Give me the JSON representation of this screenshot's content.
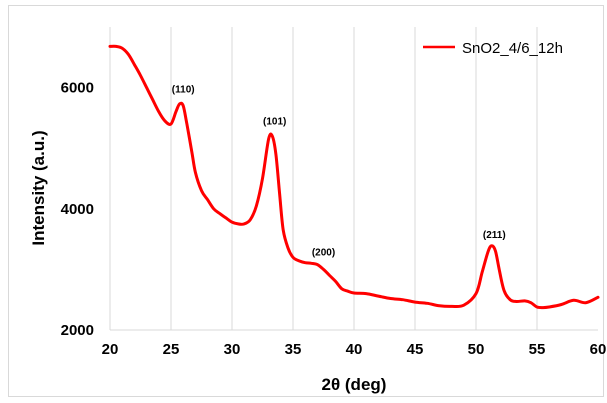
{
  "chart_data": {
    "type": "line",
    "title": "",
    "xlabel": "2θ (deg)",
    "ylabel": "Intensity (a.u.)",
    "xlim": [
      20,
      60
    ],
    "ylim": [
      2000,
      7000
    ],
    "x_ticks": [
      20,
      25,
      30,
      35,
      40,
      45,
      50,
      55,
      60
    ],
    "y_ticks": [
      2000,
      4000,
      6000
    ],
    "grid": "vertical",
    "legend_position": "top-right",
    "series_color": "#ff0000",
    "series": [
      {
        "name": "SnO2_4/6_12h",
        "x": [
          20,
          20.5,
          21,
          21.5,
          22,
          22.5,
          23,
          23.5,
          24,
          24.5,
          25,
          25.4,
          25.7,
          26,
          26.3,
          26.7,
          27,
          27.5,
          28,
          28.5,
          29,
          29.5,
          30,
          30.5,
          31,
          31.5,
          32,
          32.5,
          33,
          33.3,
          33.6,
          33.9,
          34.2,
          34.6,
          35,
          35.5,
          36,
          36.5,
          37,
          37.5,
          38,
          38.5,
          39,
          39.5,
          40,
          41,
          42,
          43,
          44,
          45,
          46,
          47,
          48,
          49,
          50,
          50.5,
          51,
          51.3,
          51.6,
          51.9,
          52.3,
          52.8,
          53.3,
          54,
          54.5,
          55,
          55.5,
          56,
          57,
          58,
          59,
          60
        ],
        "values": [
          6680,
          6680,
          6650,
          6550,
          6380,
          6200,
          6000,
          5800,
          5600,
          5450,
          5400,
          5600,
          5730,
          5700,
          5400,
          4950,
          4600,
          4300,
          4150,
          4000,
          3920,
          3850,
          3780,
          3750,
          3750,
          3820,
          4050,
          4500,
          5150,
          5200,
          4900,
          4250,
          3650,
          3350,
          3200,
          3140,
          3110,
          3100,
          3080,
          3000,
          2900,
          2800,
          2680,
          2640,
          2610,
          2600,
          2560,
          2520,
          2500,
          2460,
          2440,
          2400,
          2390,
          2410,
          2600,
          2950,
          3300,
          3390,
          3300,
          3000,
          2650,
          2500,
          2470,
          2480,
          2450,
          2380,
          2370,
          2380,
          2420,
          2490,
          2450,
          2540
        ]
      }
    ],
    "annotations": [
      {
        "text": "(110)",
        "x": 26.0,
        "y": 5920
      },
      {
        "text": "(101)",
        "x": 33.5,
        "y": 5390
      },
      {
        "text": "(200)",
        "x": 37.5,
        "y": 3230
      },
      {
        "text": "(211)",
        "x": 51.5,
        "y": 3520
      }
    ]
  }
}
